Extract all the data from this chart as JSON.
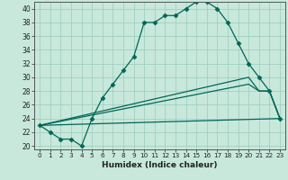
{
  "xlabel": "Humidex (Indice chaleur)",
  "background_color": "#c8e8dc",
  "grid_color": "#99ccbb",
  "line_color": "#006655",
  "xlim": [
    -0.5,
    23.5
  ],
  "ylim": [
    19.5,
    41
  ],
  "yticks": [
    20,
    22,
    24,
    26,
    28,
    30,
    32,
    34,
    36,
    38,
    40
  ],
  "xticks": [
    0,
    1,
    2,
    3,
    4,
    5,
    6,
    7,
    8,
    9,
    10,
    11,
    12,
    13,
    14,
    15,
    16,
    17,
    18,
    19,
    20,
    21,
    22,
    23
  ],
  "series": [
    {
      "x": [
        0,
        1,
        2,
        3,
        4,
        5,
        6,
        7,
        8,
        9,
        10,
        11,
        12,
        13,
        14,
        15,
        16,
        17,
        18,
        19,
        20,
        21,
        22,
        23
      ],
      "y": [
        23,
        22,
        21,
        21,
        20,
        24,
        27,
        29,
        31,
        33,
        38,
        38,
        39,
        39,
        40,
        41,
        41,
        40,
        38,
        35,
        32,
        30,
        28,
        24
      ],
      "marker": "D",
      "markersize": 2.5
    },
    {
      "x": [
        0,
        23
      ],
      "y": [
        23,
        24
      ],
      "marker": null,
      "markersize": 0
    },
    {
      "x": [
        0,
        20,
        21,
        22,
        23
      ],
      "y": [
        23,
        30,
        28,
        28,
        24
      ],
      "marker": null,
      "markersize": 0
    },
    {
      "x": [
        0,
        20,
        21,
        22,
        23
      ],
      "y": [
        23,
        29,
        28,
        28,
        24
      ],
      "marker": null,
      "markersize": 0
    }
  ]
}
